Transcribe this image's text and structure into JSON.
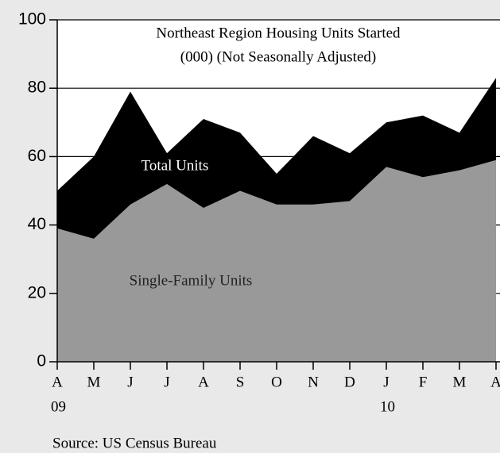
{
  "chart_data": {
    "type": "area",
    "title": "Northeast Region Housing Units Started",
    "subtitle": "(000) (Not Seasonally Adjusted)",
    "categories": [
      "A",
      "M",
      "J",
      "J",
      "A",
      "S",
      "O",
      "N",
      "D",
      "J",
      "F",
      "M",
      "A"
    ],
    "year_labels": [
      "09",
      null,
      null,
      null,
      null,
      null,
      null,
      null,
      null,
      "10",
      null,
      null,
      null
    ],
    "series": [
      {
        "name": "Total Units",
        "color": "#000000",
        "values": [
          50,
          60,
          79,
          61,
          71,
          67,
          55,
          66,
          61,
          70,
          72,
          67,
          83
        ]
      },
      {
        "name": "Single-Family Units",
        "color": "#999999",
        "values": [
          39,
          36,
          46,
          52,
          45,
          50,
          46,
          46,
          47,
          57,
          54,
          56,
          59
        ]
      }
    ],
    "ylim": [
      0,
      100
    ],
    "yticks": [
      0,
      20,
      40,
      60,
      80,
      100
    ],
    "grid": true,
    "source": "Source: US Census Bureau"
  }
}
